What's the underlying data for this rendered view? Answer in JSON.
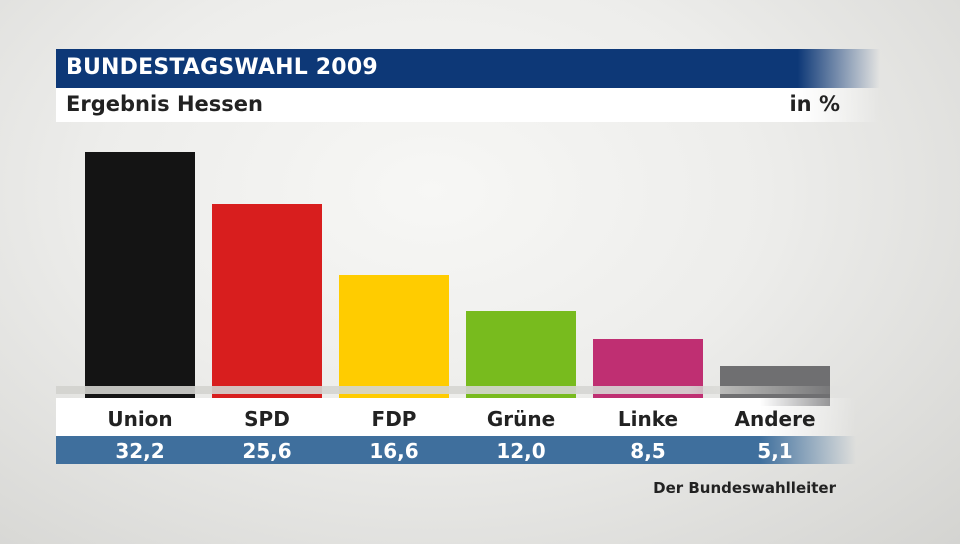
{
  "header": {
    "title": "BUNDESTAGSWAHL 2009",
    "subtitle": "Ergebnis Hessen",
    "unit": "in %"
  },
  "source": "Der Bundeswahlleiter",
  "chart_data": {
    "type": "bar",
    "title": "BUNDESTAGSWAHL 2009",
    "subtitle": "Ergebnis Hessen",
    "ylabel": "in %",
    "categories": [
      "Union",
      "SPD",
      "FDP",
      "Grüne",
      "Linke",
      "Andere"
    ],
    "values": [
      32.2,
      25.6,
      16.6,
      12.0,
      8.5,
      5.1
    ],
    "value_labels": [
      "32,2",
      "25,6",
      "16,6",
      "12,0",
      "8,5",
      "5,1"
    ],
    "colors": [
      "#141414",
      "#d81e1e",
      "#ffcc00",
      "#78bb1e",
      "#bf2f72",
      "#6f6f71"
    ],
    "ylim": [
      0,
      32.2
    ],
    "grid": false,
    "legend": "none"
  }
}
